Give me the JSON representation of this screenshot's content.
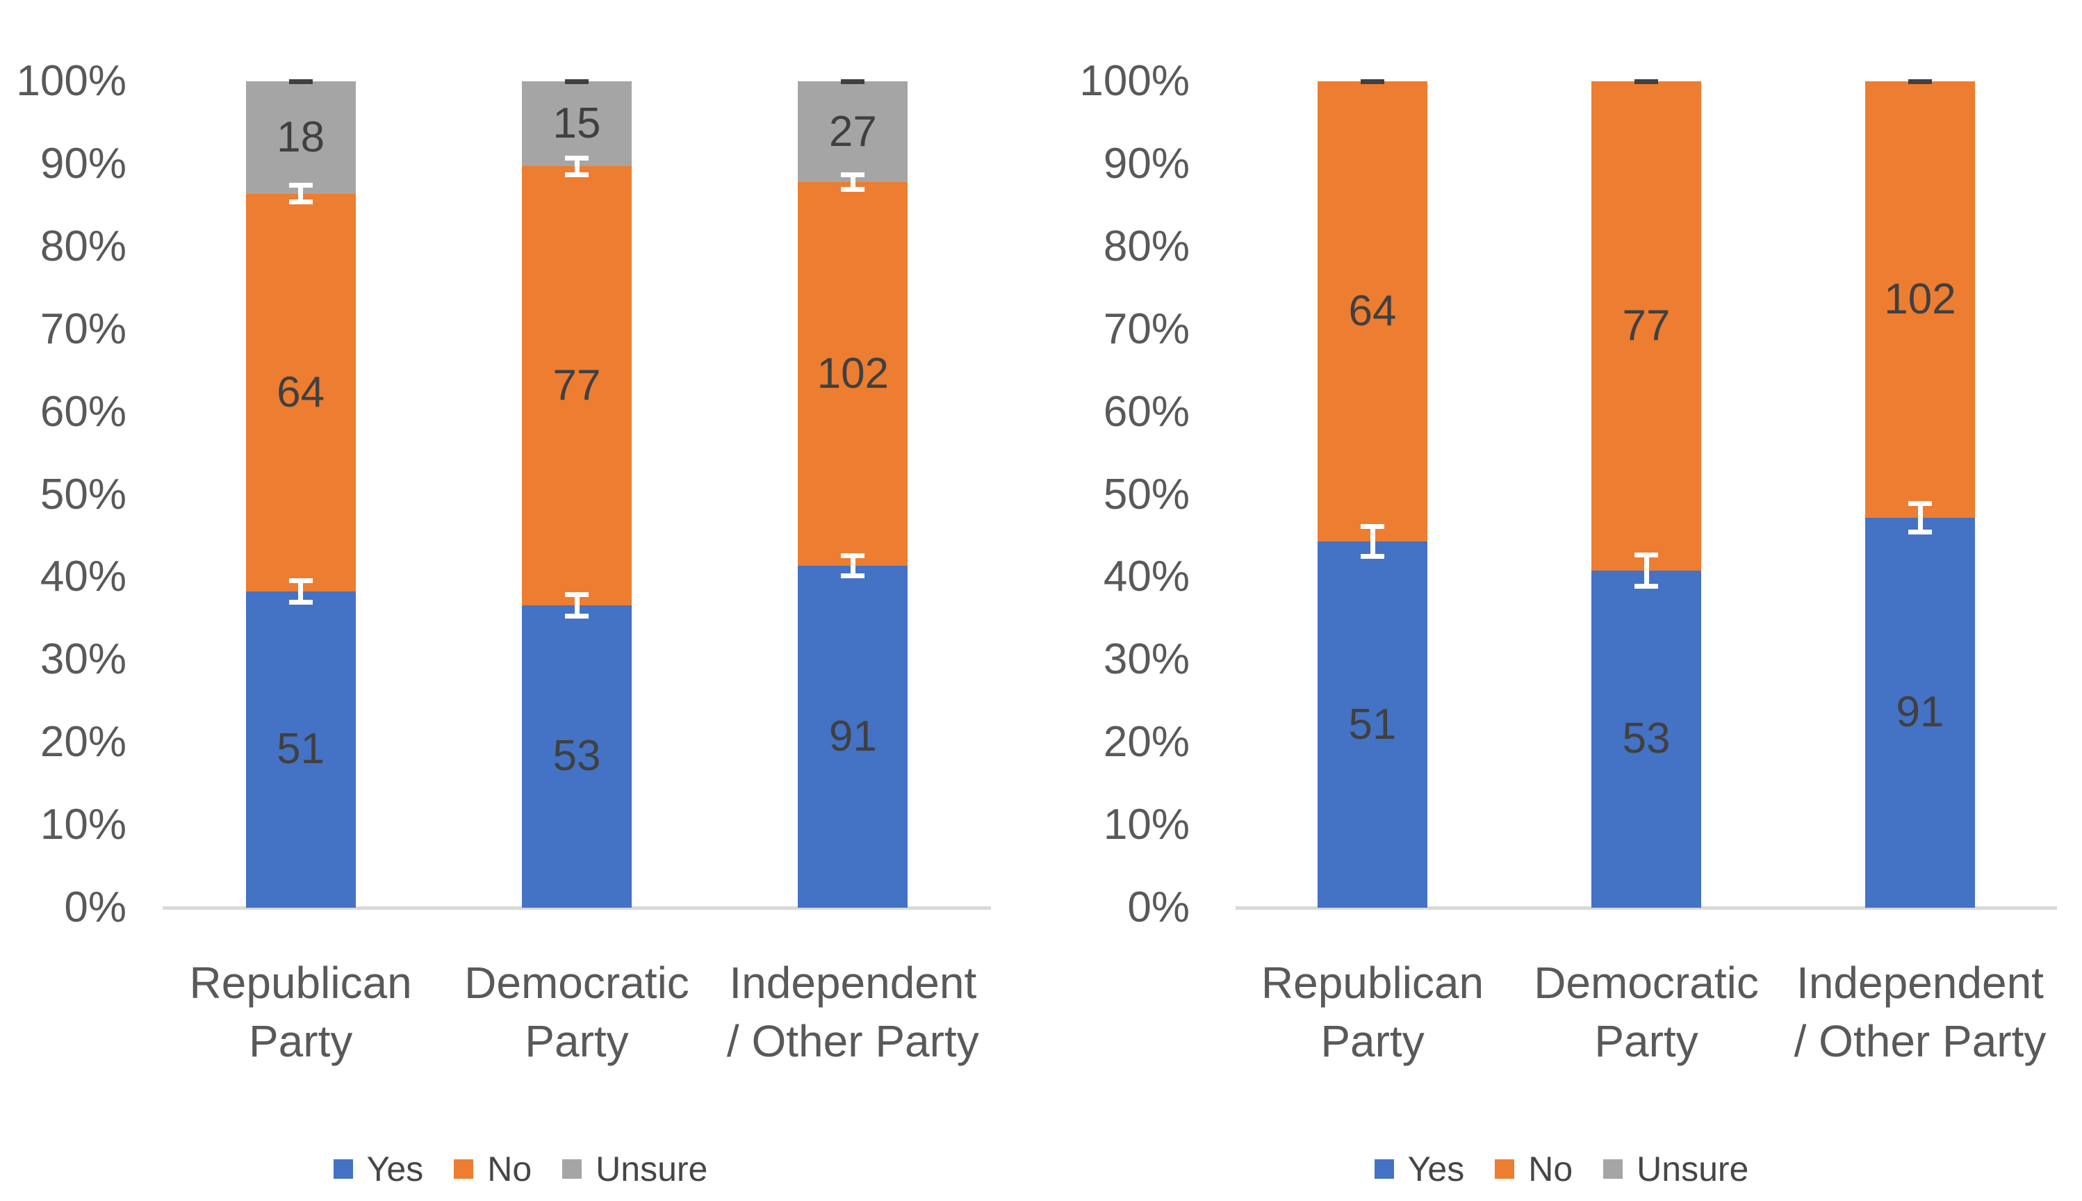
{
  "page": {
    "background": "#ffffff",
    "title": ""
  },
  "colors": {
    "yes": "#4472C4",
    "no": "#ED7D31",
    "unsure": "#A5A5A5",
    "axis_line": "#D9D9D9",
    "tick_text": "#595959",
    "category_text": "#595959",
    "data_label_text": "#404040",
    "error_bar_light": "#FFFFFF",
    "error_bar_dark": "#404040"
  },
  "y_axis_ticks": [
    "100%",
    "90%",
    "80%",
    "70%",
    "60%",
    "50%",
    "40%",
    "30%",
    "20%",
    "10%",
    "0%"
  ],
  "legend": {
    "items": [
      {
        "label": "Yes",
        "color": "#4472C4"
      },
      {
        "label": "No",
        "color": "#ED7D31"
      },
      {
        "label": "Unsure",
        "color": "#A5A5A5"
      }
    ]
  },
  "chart_data": [
    {
      "type": "bar",
      "subtype": "100%-stacked-column",
      "title": "",
      "xlabel": "",
      "ylabel": "",
      "ylim": [
        "0%",
        "100%"
      ],
      "y_tick_step": "10%",
      "gridlines": false,
      "legend_position": "bottom",
      "categories": [
        "Republican Party",
        "Democratic Party",
        "Independent / Other Party"
      ],
      "category_label_lines": [
        [
          "Republican",
          "Party"
        ],
        [
          "Democratic",
          "Party"
        ],
        [
          "Independent",
          "/ Other Party"
        ]
      ],
      "series": [
        {
          "name": "Yes",
          "color": "#4472C4",
          "counts": [
            51,
            53,
            91
          ],
          "pct": [
            38.3,
            36.6,
            41.4
          ],
          "labels": [
            "51",
            "53",
            "91"
          ]
        },
        {
          "name": "No",
          "color": "#ED7D31",
          "counts": [
            64,
            77,
            102
          ],
          "pct": [
            48.1,
            53.1,
            46.4
          ],
          "labels": [
            "64",
            "77",
            "102"
          ]
        },
        {
          "name": "Unsure",
          "color": "#A5A5A5",
          "counts": [
            18,
            15,
            27
          ],
          "pct": [
            13.6,
            10.3,
            12.2
          ],
          "labels": [
            "18",
            "15",
            "27"
          ]
        }
      ],
      "error_bars": [
        {
          "after_series": "Yes",
          "color": "#FFFFFF",
          "delta_pct": [
            1.3,
            1.3,
            1.2
          ]
        },
        {
          "after_series": "No",
          "color": "#FFFFFF",
          "delta_pct": [
            1.0,
            1.0,
            0.9
          ]
        },
        {
          "after_series": "Unsure",
          "color": "#404040",
          "delta_pct": [
            0,
            0,
            0
          ]
        }
      ]
    },
    {
      "type": "bar",
      "subtype": "100%-stacked-column",
      "title": "",
      "xlabel": "",
      "ylabel": "",
      "ylim": [
        "0%",
        "100%"
      ],
      "y_tick_step": "10%",
      "gridlines": false,
      "legend_position": "bottom",
      "categories": [
        "Republican Party",
        "Democratic Party",
        "Independent / Other Party"
      ],
      "category_label_lines": [
        [
          "Republican",
          "Party"
        ],
        [
          "Democratic",
          "Party"
        ],
        [
          "Independent",
          "/ Other Party"
        ]
      ],
      "series": [
        {
          "name": "Yes",
          "color": "#4472C4",
          "counts": [
            51,
            53,
            91
          ],
          "pct": [
            44.3,
            40.8,
            47.2
          ],
          "labels": [
            "51",
            "53",
            "91"
          ]
        },
        {
          "name": "No",
          "color": "#ED7D31",
          "counts": [
            64,
            77,
            102
          ],
          "pct": [
            55.7,
            59.2,
            52.8
          ],
          "labels": [
            "64",
            "77",
            "102"
          ]
        },
        {
          "name": "Unsure",
          "color": "#A5A5A5",
          "counts": [
            0,
            0,
            0
          ],
          "pct": [
            0,
            0,
            0
          ],
          "labels": [
            "",
            "",
            ""
          ]
        }
      ],
      "error_bars": [
        {
          "after_series": "Yes",
          "color": "#FFFFFF",
          "delta_pct": [
            1.8,
            1.9,
            1.7
          ]
        },
        {
          "after_series": "No",
          "color": "#404040",
          "delta_pct": [
            0,
            0,
            0
          ]
        }
      ]
    }
  ]
}
